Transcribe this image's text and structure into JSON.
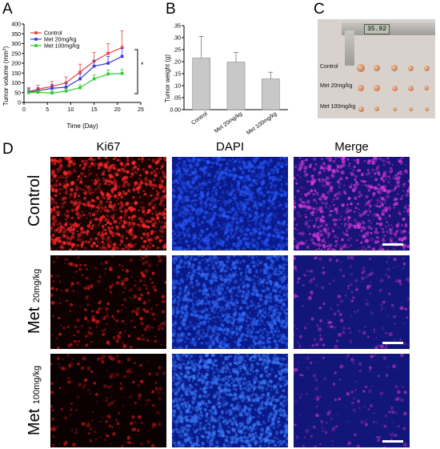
{
  "panels": {
    "a": "A",
    "b": "B",
    "c": "C",
    "d": "D"
  },
  "colors": {
    "control": "#e8413a",
    "met20": "#3a3ad6",
    "met100": "#2ecc2e",
    "bar": "#c8c8c8"
  },
  "chart_data": [
    {
      "type": "line",
      "panel": "A",
      "xlabel": "Time (Day)",
      "ylabel": "Tumor volume (mm",
      "ylabel_sup": "3",
      "ylabel_end": ")",
      "xlim": [
        0,
        25
      ],
      "ylim": [
        0,
        400
      ],
      "xticks": [
        "0",
        "5",
        "10",
        "15",
        "20",
        "25"
      ],
      "yticks": [
        "0",
        "50",
        "100",
        "150",
        "200",
        "250",
        "300",
        "350",
        "400"
      ],
      "x": [
        1,
        3,
        6,
        9,
        12,
        15,
        18,
        21
      ],
      "series": [
        {
          "name": "Control",
          "color": "#e8413a",
          "values": [
            55,
            68,
            82,
            100,
            155,
            210,
            250,
            280
          ],
          "errors": [
            20,
            20,
            25,
            30,
            40,
            45,
            50,
            85
          ]
        },
        {
          "name": "Met 20mg/kg",
          "color": "#3a3ad6",
          "values": [
            52,
            60,
            72,
            78,
            120,
            185,
            200,
            235
          ],
          "errors": [
            18,
            15,
            20,
            20,
            25,
            30,
            35,
            40
          ]
        },
        {
          "name": "Met 100mg/kg",
          "color": "#2ecc2e",
          "values": [
            50,
            52,
            48,
            58,
            75,
            120,
            145,
            148
          ],
          "errors": [
            15,
            10,
            10,
            12,
            15,
            20,
            20,
            20
          ]
        }
      ],
      "annotation": "*"
    },
    {
      "type": "bar",
      "panel": "B",
      "ylabel": "Tumor weight (g)",
      "ylim": [
        0,
        0.35
      ],
      "yticks": [
        "0.00",
        ".05",
        ".10",
        ".15",
        ".20",
        ".25",
        ".30",
        ".35"
      ],
      "categories": [
        "Control",
        "Met 20mg/kg",
        "Met 100mg/kg"
      ],
      "values": [
        0.215,
        0.198,
        0.128
      ],
      "errors": [
        0.09,
        0.04,
        0.028
      ]
    }
  ],
  "photo_c": {
    "rows": [
      "Control",
      "Met 20mg/kg",
      "Met 100mg/kg"
    ],
    "caliper_reading": "35.92"
  },
  "panel_d": {
    "columns": [
      "Ki67",
      "DAPI",
      "Merge"
    ],
    "rows": [
      {
        "main": "Control",
        "sub": ""
      },
      {
        "main": "Met",
        "sub": "20mg/kg"
      },
      {
        "main": "Met",
        "sub": "100mg/kg"
      }
    ]
  }
}
